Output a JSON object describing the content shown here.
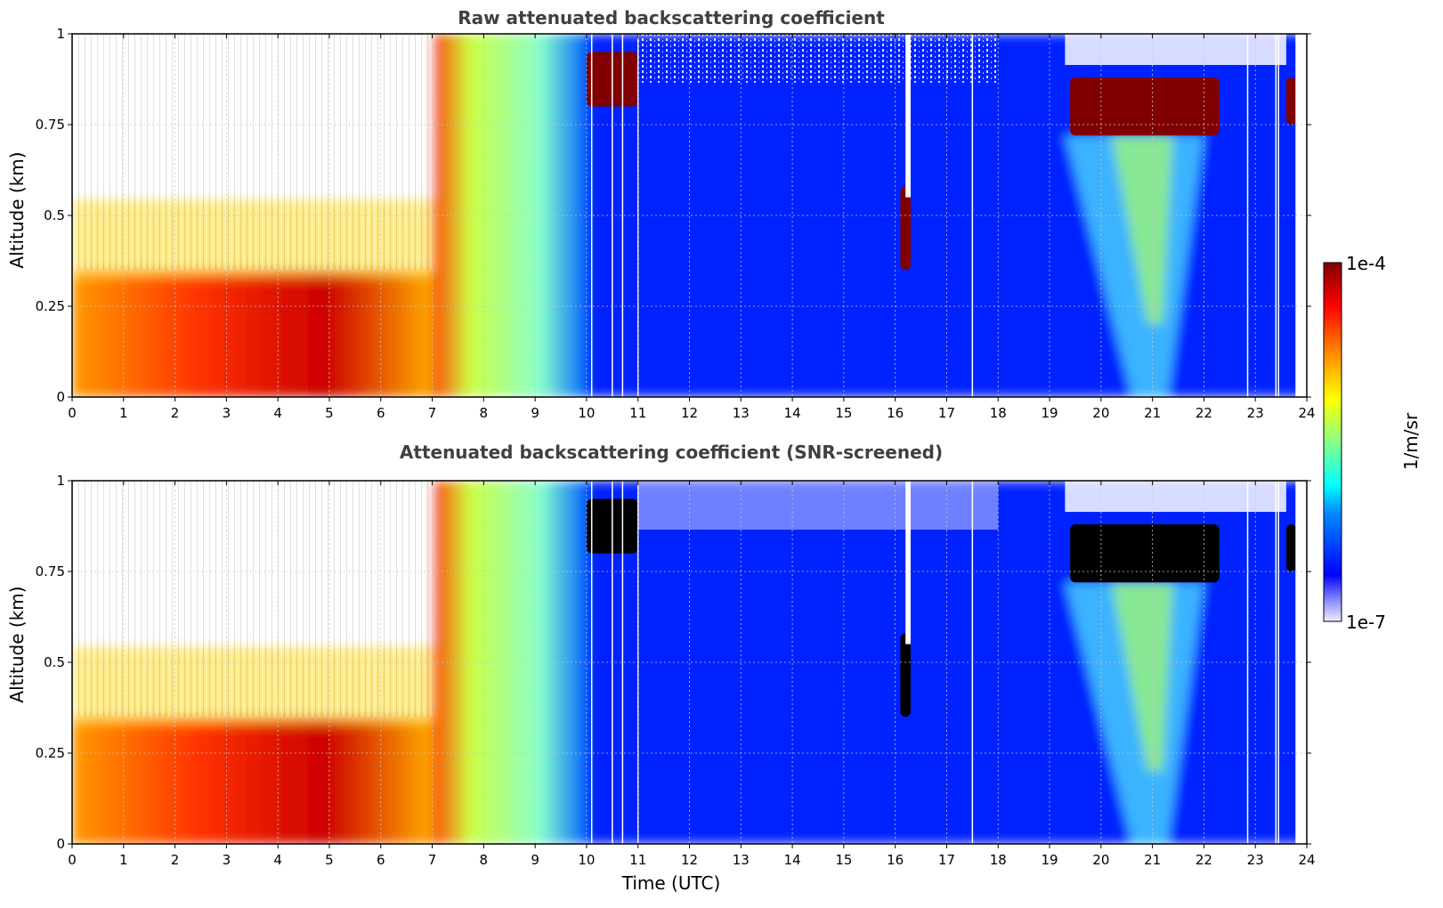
{
  "figure": {
    "xlabel": "Time (UTC)",
    "colorbar": {
      "label": "1/m/sr",
      "max_label": "1e-4",
      "min_label": "1e-7",
      "colormap": "jet",
      "scale": "log"
    }
  },
  "chart_data": [
    {
      "type": "heatmap",
      "title": "Raw attenuated backscattering coefficient",
      "xlabel": "",
      "ylabel": "Altitude (km)",
      "xlim": [
        0,
        24
      ],
      "ylim": [
        0,
        1
      ],
      "xticks": [
        "0",
        "1",
        "2",
        "3",
        "4",
        "5",
        "6",
        "7",
        "8",
        "9",
        "10",
        "11",
        "12",
        "13",
        "14",
        "15",
        "16",
        "17",
        "18",
        "19",
        "20",
        "21",
        "22",
        "23",
        "24"
      ],
      "yticks": [
        "0",
        "0.25",
        "0.5",
        "0.75",
        "1"
      ],
      "grid": true,
      "saturated_color": "#800000",
      "regions": [
        {
          "feature": "polluted boundary layer",
          "time_range": [
            0,
            7
          ],
          "altitude_top_km": 0.35,
          "level": "high"
        },
        {
          "feature": "residual layer transition",
          "time_range": [
            7,
            10
          ],
          "altitude_top_km": 1.0,
          "level": "medium"
        },
        {
          "feature": "clear sky",
          "time_range": [
            10,
            24
          ],
          "altitude_top_km": 1.0,
          "level": "low"
        },
        {
          "feature": "cloud",
          "time_range": [
            10.0,
            11.0
          ],
          "altitude_range_km": [
            0.8,
            0.95
          ],
          "level": "saturated"
        },
        {
          "feature": "cloud",
          "time_range": [
            16.1,
            16.3
          ],
          "altitude_range_km": [
            0.35,
            0.58
          ],
          "level": "saturated"
        },
        {
          "feature": "cloud",
          "time_range": [
            19.4,
            22.3
          ],
          "altitude_range_km": [
            0.72,
            0.88
          ],
          "level": "saturated"
        },
        {
          "feature": "precipitation streaks",
          "time_range": [
            19.3,
            22.0
          ],
          "altitude_range_km": [
            0.0,
            0.72
          ],
          "level": "medium"
        },
        {
          "feature": "cloud",
          "time_range": [
            23.6,
            23.8
          ],
          "altitude_range_km": [
            0.75,
            0.88
          ],
          "level": "saturated"
        }
      ]
    },
    {
      "type": "heatmap",
      "title": "Attenuated backscattering coefficient (SNR-screened)",
      "xlabel": "Time (UTC)",
      "ylabel": "Altitude (km)",
      "xlim": [
        0,
        24
      ],
      "ylim": [
        0,
        1
      ],
      "xticks": [
        "0",
        "1",
        "2",
        "3",
        "4",
        "5",
        "6",
        "7",
        "8",
        "9",
        "10",
        "11",
        "12",
        "13",
        "14",
        "15",
        "16",
        "17",
        "18",
        "19",
        "20",
        "21",
        "22",
        "23",
        "24"
      ],
      "yticks": [
        "0",
        "0.25",
        "0.5",
        "0.75",
        "1"
      ],
      "grid": true,
      "saturated_color": "#000000",
      "regions": [
        {
          "feature": "polluted boundary layer",
          "time_range": [
            0,
            7
          ],
          "altitude_top_km": 0.35,
          "level": "high"
        },
        {
          "feature": "residual layer transition",
          "time_range": [
            7,
            10
          ],
          "altitude_top_km": 1.0,
          "level": "medium"
        },
        {
          "feature": "clear sky",
          "time_range": [
            10,
            24
          ],
          "altitude_top_km": 1.0,
          "level": "low"
        },
        {
          "feature": "cloud",
          "time_range": [
            10.0,
            11.0
          ],
          "altitude_range_km": [
            0.8,
            0.95
          ],
          "level": "saturated"
        },
        {
          "feature": "cloud",
          "time_range": [
            16.1,
            16.3
          ],
          "altitude_range_km": [
            0.35,
            0.58
          ],
          "level": "saturated"
        },
        {
          "feature": "cloud",
          "time_range": [
            19.4,
            22.3
          ],
          "altitude_range_km": [
            0.72,
            0.88
          ],
          "level": "saturated"
        },
        {
          "feature": "precipitation streaks",
          "time_range": [
            19.3,
            22.0
          ],
          "altitude_range_km": [
            0.0,
            0.72
          ],
          "level": "medium"
        },
        {
          "feature": "cloud",
          "time_range": [
            23.6,
            23.8
          ],
          "altitude_range_km": [
            0.75,
            0.88
          ],
          "level": "saturated"
        }
      ]
    }
  ]
}
